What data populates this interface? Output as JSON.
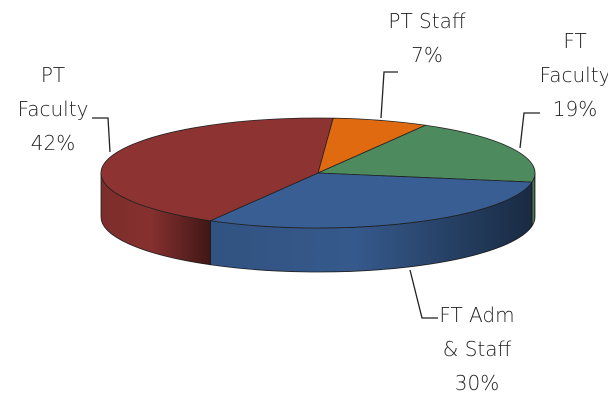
{
  "chart_data": {
    "type": "pie3d",
    "categories": [
      "PT Staff",
      "FT Faculty",
      "FT Adm & Staff",
      "PT Faculty"
    ],
    "values": [
      7,
      19,
      30,
      42
    ],
    "value_labels": [
      "7%",
      "19%",
      "30%",
      "42%"
    ],
    "colors": [
      "#e06a10",
      "#4d8a5e",
      "#385e93",
      "#8d3331"
    ]
  }
}
